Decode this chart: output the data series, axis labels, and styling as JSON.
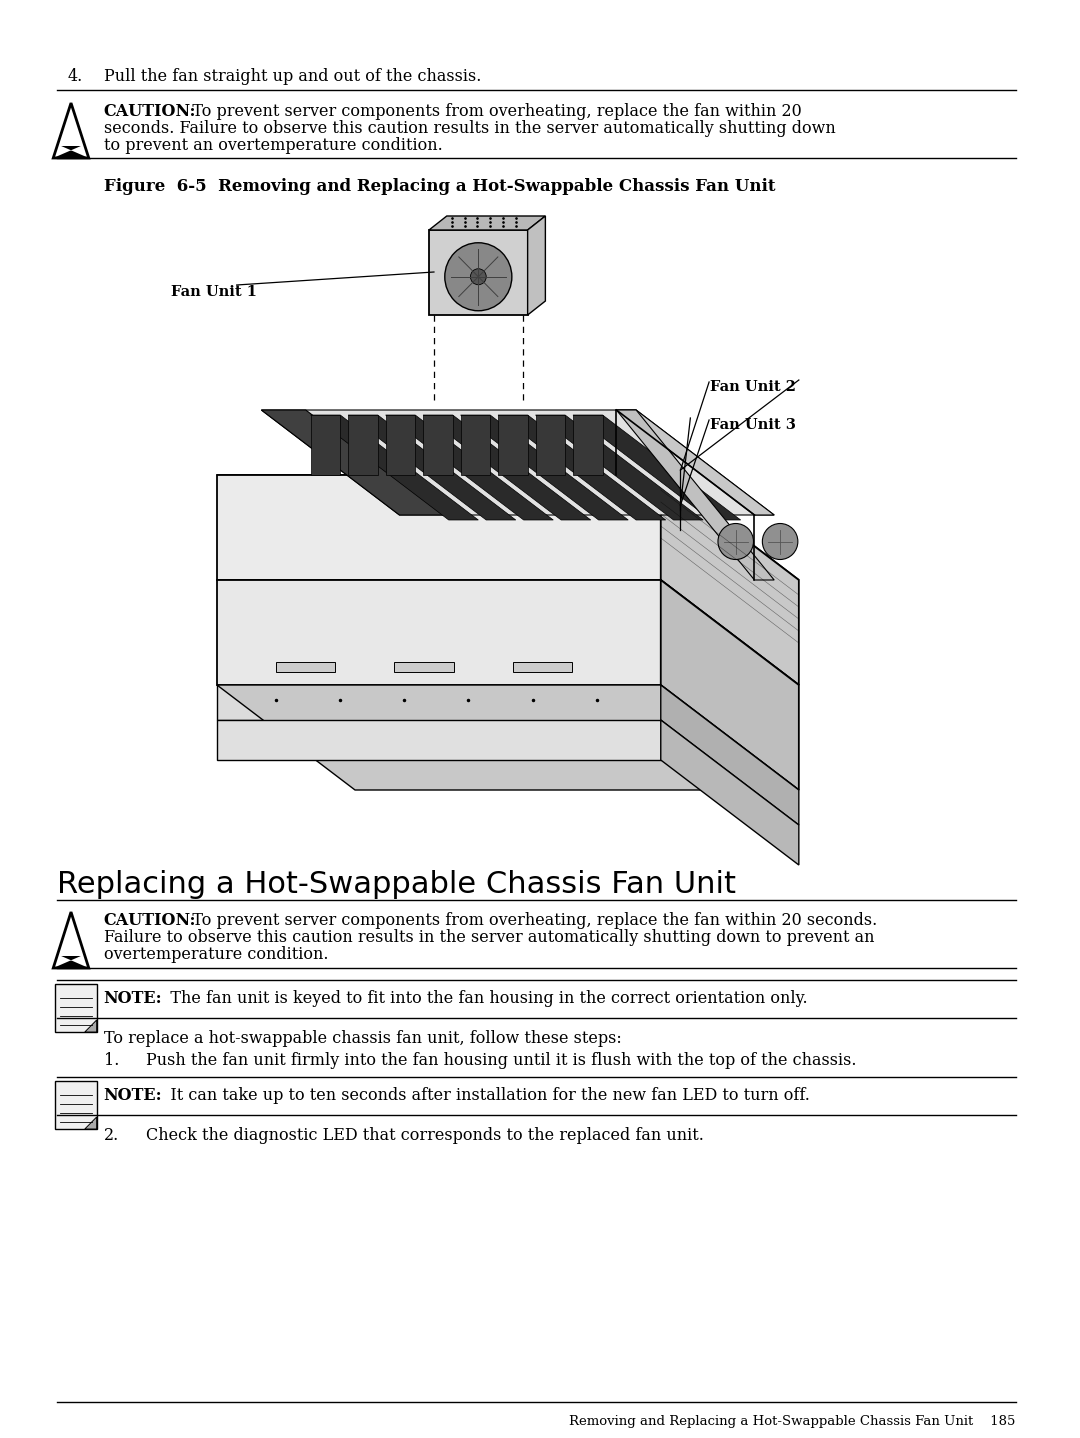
{
  "bg_color": "#ffffff",
  "text_color": "#000000",
  "step4_num": "4.",
  "step4_text": "Pull the fan straight up and out of the chassis.",
  "caution1_bold": "CAUTION:",
  "caution1_line1": "   To prevent server components from overheating, replace the fan within 20",
  "caution1_line2": "seconds. Failure to observe this caution results in the server automatically shutting down",
  "caution1_line3": "to prevent an overtemperature condition.",
  "figure_caption": "Figure  6-5  Removing and Replacing a Hot-Swappable Chassis Fan Unit",
  "fan_unit1_label": "Fan Unit 1",
  "fan_unit2_label": "Fan Unit 2",
  "fan_unit3_label": "Fan Unit 3",
  "section_title": "Replacing a Hot-Swappable Chassis Fan Unit",
  "caution2_bold": "CAUTION:",
  "caution2_line1": "   To prevent server components from overheating, replace the fan within 20 seconds.",
  "caution2_line2": "Failure to observe this caution results in the server automatically shutting down to prevent an",
  "caution2_line3": "overtemperature condition.",
  "note1_bold": "NOTE:",
  "note1_text": "   The fan unit is keyed to fit into the fan housing in the correct orientation only.",
  "steps_intro": "To replace a hot-swappable chassis fan unit, follow these steps:",
  "step1_num": "1.",
  "step1_text": "Push the fan unit firmly into the fan housing until it is flush with the top of the chassis.",
  "note2_bold": "NOTE:",
  "note2_text": "   It can take up to ten seconds after installation for the new fan LED to turn off.",
  "step2_num": "2.",
  "step2_text": "Check the diagnostic LED that corresponds to the replaced fan unit.",
  "footer_text": "Removing and Replacing a Hot-Swappable Chassis Fan Unit    185"
}
